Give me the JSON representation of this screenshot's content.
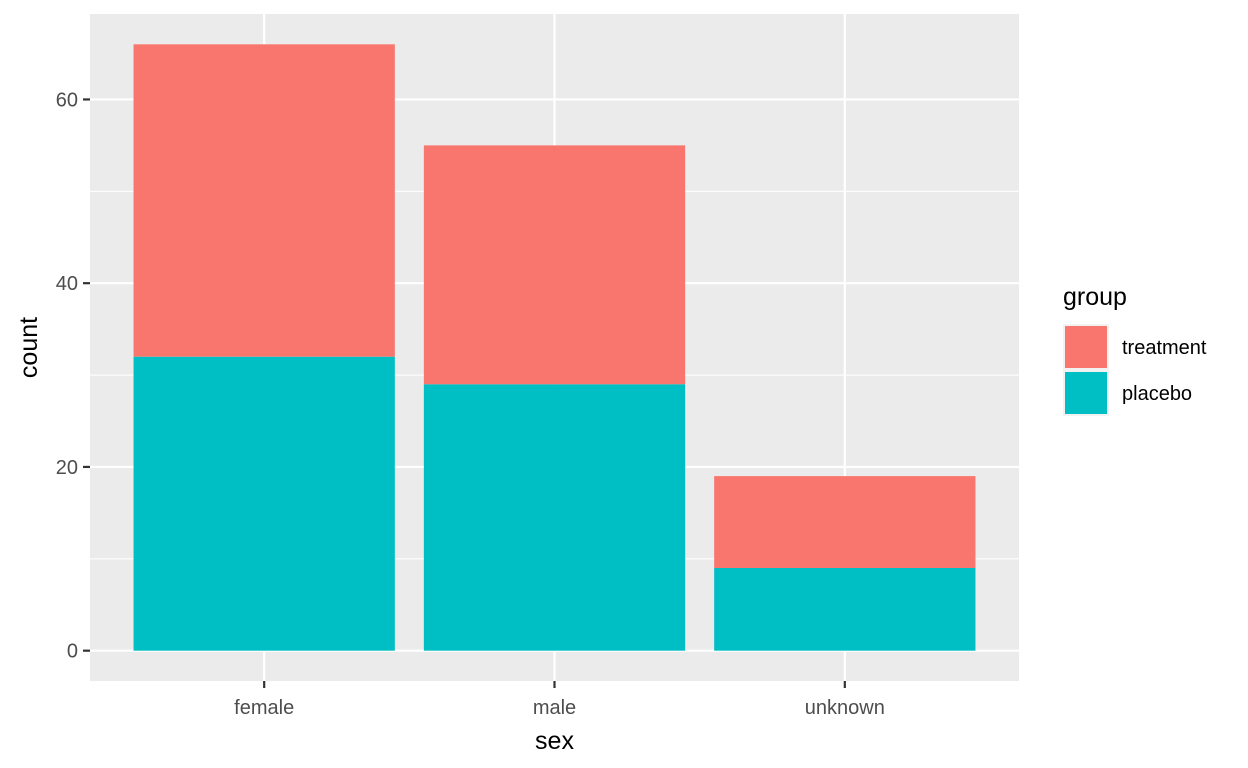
{
  "chart_data": {
    "type": "bar",
    "stacked": true,
    "categories": [
      "female",
      "male",
      "unknown"
    ],
    "series": [
      {
        "name": "placebo",
        "values": [
          32,
          29,
          9
        ],
        "color": "#00BFC4"
      },
      {
        "name": "treatment",
        "values": [
          34,
          26,
          10
        ],
        "color": "#F8766D"
      }
    ],
    "xlabel": "sex",
    "ylabel": "count",
    "ylim": [
      -3.3,
      69.3
    ],
    "yticks": [
      0,
      20,
      40,
      60
    ],
    "grid": true,
    "legend": {
      "title": "group",
      "placement": "right",
      "entries": [
        {
          "label": "treatment",
          "color": "#F8766D"
        },
        {
          "label": "placebo",
          "color": "#00BFC4"
        }
      ]
    },
    "panel_background": "#EBEBEB",
    "grid_color": "#FFFFFF"
  }
}
